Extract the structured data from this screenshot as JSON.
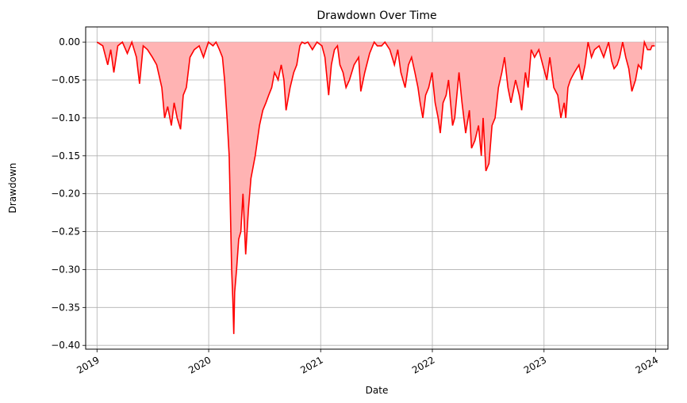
{
  "chart_data": {
    "type": "area",
    "title": "Drawdown Over Time",
    "xlabel": "Date",
    "ylabel": "Drawdown",
    "xlim": [
      "2018-11-25",
      "2024-02-10"
    ],
    "ylim": [
      -0.405,
      0.02
    ],
    "grid": true,
    "legend": "none",
    "line_color": "#ff0000",
    "fill_color": "#ffb3b3",
    "x_ticks": [
      {
        "date": "2019-01-01",
        "label": "2019"
      },
      {
        "date": "2020-01-01",
        "label": "2020"
      },
      {
        "date": "2021-01-01",
        "label": "2021"
      },
      {
        "date": "2022-01-01",
        "label": "2022"
      },
      {
        "date": "2023-01-01",
        "label": "2023"
      },
      {
        "date": "2024-01-01",
        "label": "2024"
      }
    ],
    "y_ticks": [
      {
        "value": 0.0,
        "label": "0.00"
      },
      {
        "value": -0.05,
        "label": "−0.05"
      },
      {
        "value": -0.1,
        "label": "−0.10"
      },
      {
        "value": -0.15,
        "label": "−0.15"
      },
      {
        "value": -0.2,
        "label": "−0.20"
      },
      {
        "value": -0.25,
        "label": "−0.25"
      },
      {
        "value": -0.3,
        "label": "−0.30"
      },
      {
        "value": -0.35,
        "label": "−0.35"
      },
      {
        "value": -0.4,
        "label": "−0.40"
      }
    ],
    "series": [
      {
        "x": [
          "2019-01-01",
          "2019-01-20",
          "2019-02-05",
          "2019-02-15",
          "2019-02-25",
          "2019-03-10",
          "2019-03-25",
          "2019-04-10",
          "2019-04-25",
          "2019-05-10",
          "2019-05-20",
          "2019-06-01",
          "2019-06-15",
          "2019-07-01",
          "2019-07-15",
          "2019-08-01",
          "2019-08-10",
          "2019-08-20",
          "2019-09-01",
          "2019-09-10",
          "2019-09-20",
          "2019-10-01",
          "2019-10-10",
          "2019-10-20",
          "2019-11-01",
          "2019-11-15",
          "2019-12-01",
          "2019-12-15",
          "2019-12-31",
          "2020-01-15",
          "2020-01-25",
          "2020-02-05",
          "2020-02-15",
          "2020-02-22",
          "2020-03-01",
          "2020-03-08",
          "2020-03-12",
          "2020-03-16",
          "2020-03-20",
          "2020-03-23",
          "2020-03-26",
          "2020-04-01",
          "2020-04-08",
          "2020-04-15",
          "2020-04-22",
          "2020-05-01",
          "2020-05-10",
          "2020-05-18",
          "2020-06-01",
          "2020-06-08",
          "2020-06-15",
          "2020-06-26",
          "2020-07-06",
          "2020-07-15",
          "2020-07-25",
          "2020-08-03",
          "2020-08-15",
          "2020-08-25",
          "2020-09-03",
          "2020-09-10",
          "2020-09-23",
          "2020-10-05",
          "2020-10-15",
          "2020-10-25",
          "2020-11-01",
          "2020-11-10",
          "2020-11-20",
          "2020-12-05",
          "2020-12-20",
          "2021-01-05",
          "2021-01-15",
          "2021-01-27",
          "2021-02-05",
          "2021-02-15",
          "2021-02-25",
          "2021-03-05",
          "2021-03-15",
          "2021-03-25",
          "2021-04-05",
          "2021-04-20",
          "2021-05-05",
          "2021-05-12",
          "2021-05-25",
          "2021-06-10",
          "2021-06-25",
          "2021-07-05",
          "2021-07-19",
          "2021-07-30",
          "2021-08-15",
          "2021-08-30",
          "2021-09-10",
          "2021-09-20",
          "2021-10-04",
          "2021-10-15",
          "2021-10-25",
          "2021-11-05",
          "2021-11-15",
          "2021-11-22",
          "2021-12-01",
          "2021-12-10",
          "2021-12-20",
          "2021-12-31",
          "2022-01-10",
          "2022-01-20",
          "2022-01-27",
          "2022-02-05",
          "2022-02-15",
          "2022-02-23",
          "2022-03-08",
          "2022-03-15",
          "2022-03-29",
          "2022-04-08",
          "2022-04-20",
          "2022-05-02",
          "2022-05-09",
          "2022-05-20",
          "2022-06-01",
          "2022-06-10",
          "2022-06-16",
          "2022-06-25",
          "2022-07-05",
          "2022-07-15",
          "2022-07-25",
          "2022-08-05",
          "2022-08-16",
          "2022-08-25",
          "2022-09-05",
          "2022-09-15",
          "2022-09-30",
          "2022-10-12",
          "2022-10-20",
          "2022-11-01",
          "2022-11-10",
          "2022-11-20",
          "2022-12-01",
          "2022-12-15",
          "2022-12-28",
          "2023-01-10",
          "2023-01-20",
          "2023-02-02",
          "2023-02-15",
          "2023-02-25",
          "2023-03-08",
          "2023-03-13",
          "2023-03-20",
          "2023-03-28",
          "2023-04-10",
          "2023-04-25",
          "2023-05-05",
          "2023-05-15",
          "2023-05-25",
          "2023-06-05",
          "2023-06-15",
          "2023-06-30",
          "2023-07-15",
          "2023-07-31",
          "2023-08-10",
          "2023-08-18",
          "2023-08-28",
          "2023-09-05",
          "2023-09-15",
          "2023-09-25",
          "2023-10-05",
          "2023-10-15",
          "2023-10-27",
          "2023-11-05",
          "2023-11-15",
          "2023-11-25",
          "2023-12-05",
          "2023-12-15",
          "2023-12-20",
          "2023-12-29"
        ],
        "y": [
          0.0,
          -0.005,
          -0.03,
          -0.01,
          -0.04,
          -0.005,
          0.0,
          -0.015,
          0.0,
          -0.02,
          -0.055,
          -0.005,
          -0.01,
          -0.02,
          -0.03,
          -0.06,
          -0.1,
          -0.085,
          -0.11,
          -0.08,
          -0.1,
          -0.115,
          -0.07,
          -0.06,
          -0.02,
          -0.01,
          -0.005,
          -0.02,
          0.0,
          -0.005,
          0.0,
          -0.01,
          -0.02,
          -0.05,
          -0.1,
          -0.15,
          -0.22,
          -0.3,
          -0.34,
          -0.385,
          -0.33,
          -0.3,
          -0.26,
          -0.25,
          -0.2,
          -0.28,
          -0.22,
          -0.18,
          -0.15,
          -0.13,
          -0.11,
          -0.09,
          -0.08,
          -0.07,
          -0.06,
          -0.04,
          -0.05,
          -0.03,
          -0.05,
          -0.09,
          -0.06,
          -0.04,
          -0.03,
          -0.005,
          0.0,
          -0.002,
          0.0,
          -0.01,
          0.0,
          -0.005,
          -0.02,
          -0.07,
          -0.03,
          -0.01,
          -0.005,
          -0.03,
          -0.04,
          -0.06,
          -0.05,
          -0.03,
          -0.02,
          -0.065,
          -0.04,
          -0.015,
          0.0,
          -0.005,
          -0.005,
          0.0,
          -0.01,
          -0.03,
          -0.01,
          -0.04,
          -0.06,
          -0.03,
          -0.02,
          -0.04,
          -0.06,
          -0.08,
          -0.1,
          -0.07,
          -0.06,
          -0.04,
          -0.08,
          -0.1,
          -0.12,
          -0.08,
          -0.07,
          -0.05,
          -0.11,
          -0.1,
          -0.04,
          -0.08,
          -0.12,
          -0.09,
          -0.14,
          -0.13,
          -0.11,
          -0.15,
          -0.1,
          -0.17,
          -0.16,
          -0.11,
          -0.1,
          -0.06,
          -0.04,
          -0.02,
          -0.06,
          -0.08,
          -0.05,
          -0.07,
          -0.09,
          -0.04,
          -0.06,
          -0.01,
          -0.02,
          -0.01,
          -0.03,
          -0.05,
          -0.02,
          -0.06,
          -0.07,
          -0.1,
          -0.08,
          -0.1,
          -0.06,
          -0.05,
          -0.04,
          -0.03,
          -0.05,
          -0.03,
          0.0,
          -0.02,
          -0.01,
          -0.005,
          -0.02,
          0.0,
          -0.025,
          -0.035,
          -0.03,
          -0.02,
          0.0,
          -0.02,
          -0.035,
          -0.065,
          -0.05,
          -0.03,
          -0.035,
          0.0,
          -0.01,
          -0.01,
          -0.005,
          -0.005
        ]
      }
    ]
  }
}
